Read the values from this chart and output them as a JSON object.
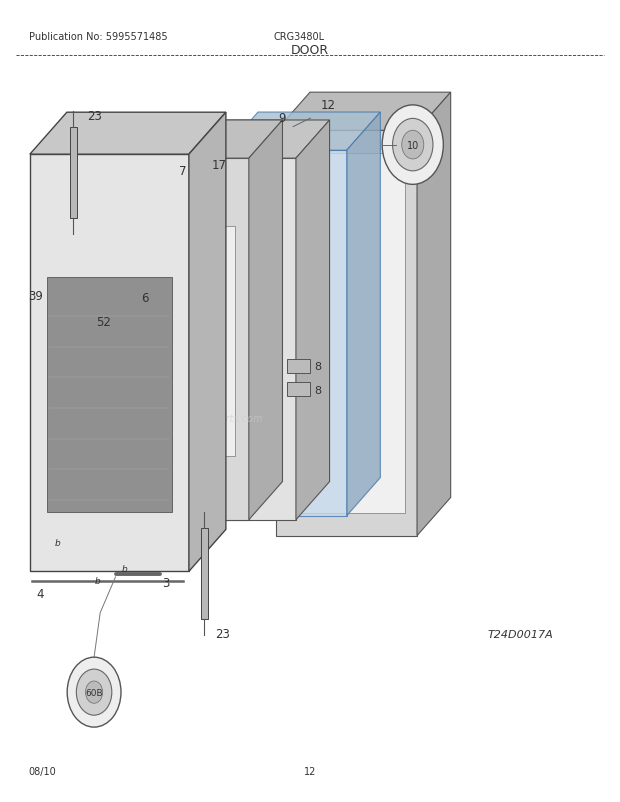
{
  "title": "DOOR",
  "pub_no": "Publication No: 5995571485",
  "model": "CRG3480L",
  "date": "08/10",
  "page": "12",
  "diagram_id": "T24D0017A",
  "bg_color": "#ffffff",
  "line_color": "#333333"
}
